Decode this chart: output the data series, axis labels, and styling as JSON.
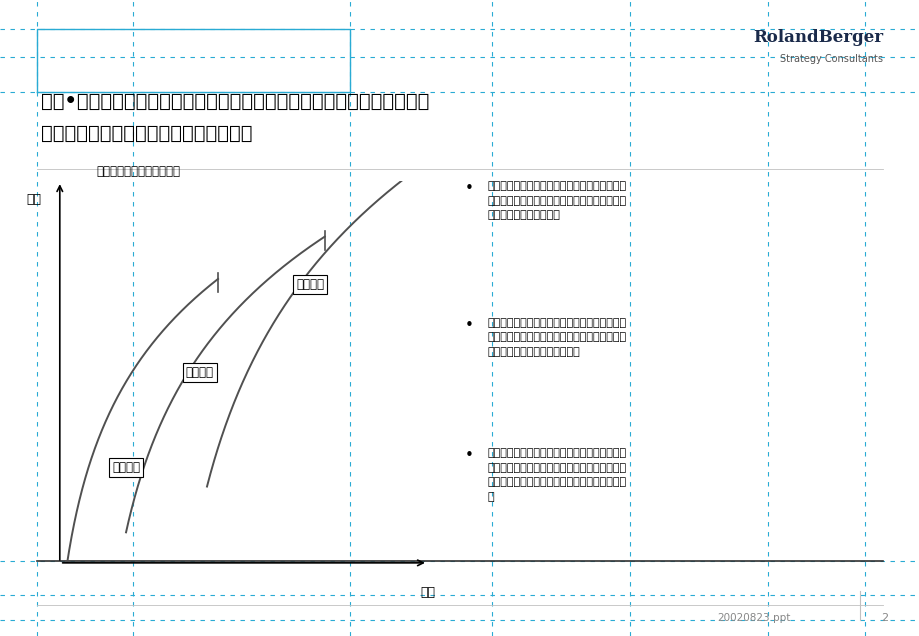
{
  "title_line1": "罗兰•贝格认为，科学的开发区产业定位组合应该由三种类型产业构成，它",
  "title_line2": "们将在不同时期推动开发区的可持续成长",
  "chart_subtitle": "科学的开发区产业定位组合",
  "xlabel": "时间",
  "ylabel": "规模",
  "curve_labels": [
    "辅助产业",
    "核心产业",
    "前瞻产业"
  ],
  "bullet1": "辅助产业主要包括保障性、服务性产业和为核心产业提供配套服务的关联性产业，是一个开发区经济发展不可或缺的部分",
  "bullet2": "核心产业是推动开发区经济发展的支柱，是为开发区经济发展创造价值的主体，准确界定核心产业是做好开发区产业定位的关键",
  "bullet3": "前瞻产业，也称先导性产业，是开发区未来的核心产业，但在目前尚不能构成其经济的主体和价值创造的第一推动力，是开发区要着力培养的产业",
  "logo_text1": "RolandBerger",
  "logo_text2": "Strategy Consultants",
  "footer_text": "20020823.ppt",
  "page_num": "2",
  "bg_color": "#ffffff",
  "text_color": "#000000",
  "curve_color": "#505050",
  "grid_color": "#29ABD4",
  "logo_color": "#1a2a4a",
  "footer_color": "#888888",
  "header_rect_color": "#29ABD4",
  "title_sep_color": "#404040"
}
